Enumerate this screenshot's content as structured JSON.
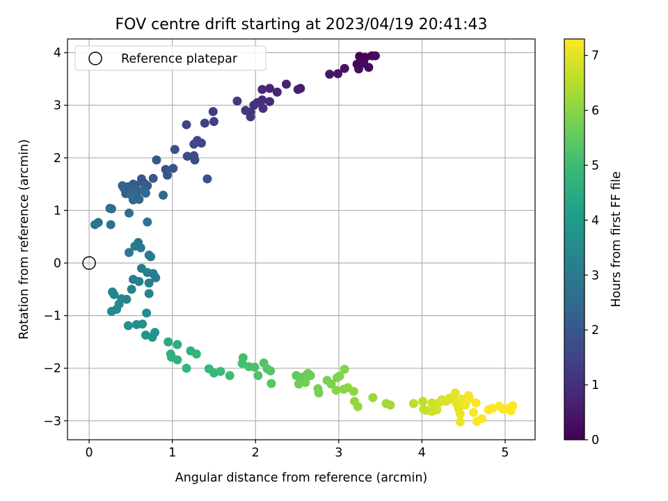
{
  "chart_data": {
    "type": "scatter",
    "title": "FOV centre drift starting at 2023/04/19 20:41:43",
    "xlabel": "Angular distance from reference (arcmin)",
    "ylabel": "Rotation from reference (arcmin)",
    "xlim": [
      -0.26,
      5.36
    ],
    "ylim": [
      -3.36,
      4.26
    ],
    "x_ticks": [
      0,
      1,
      2,
      3,
      4,
      5
    ],
    "y_ticks": [
      -3,
      -2,
      -1,
      0,
      1,
      2,
      3,
      4
    ],
    "grid": true,
    "legend": {
      "placement": "top-left",
      "entries": [
        "Reference platepar"
      ]
    },
    "reference_point": {
      "x": 0,
      "y": 0,
      "label": "Reference platepar"
    },
    "colorbar": {
      "label": "Hours from first FF file",
      "range": [
        0,
        7.3
      ],
      "ticks": [
        0,
        1,
        2,
        3,
        4,
        5,
        6,
        7
      ],
      "colormap": "viridis"
    },
    "colormap_stops": [
      "#440154",
      "#482878",
      "#3e4989",
      "#31688e",
      "#26828e",
      "#1f9e89",
      "#35b779",
      "#6ece58",
      "#b5de2b",
      "#fde725"
    ],
    "points": [
      {
        "x": 3.25,
        "y": 3.93,
        "h": 0.0
      },
      {
        "x": 3.32,
        "y": 3.91,
        "h": 0.04
      },
      {
        "x": 3.4,
        "y": 3.94,
        "h": 0.08
      },
      {
        "x": 3.28,
        "y": 3.86,
        "h": 0.11
      },
      {
        "x": 3.22,
        "y": 3.78,
        "h": 0.15
      },
      {
        "x": 3.3,
        "y": 3.8,
        "h": 0.18
      },
      {
        "x": 3.36,
        "y": 3.72,
        "h": 0.22
      },
      {
        "x": 3.24,
        "y": 3.69,
        "h": 0.26
      },
      {
        "x": 3.44,
        "y": 3.94,
        "h": 0.3
      },
      {
        "x": 3.07,
        "y": 3.7,
        "h": 0.36
      },
      {
        "x": 2.99,
        "y": 3.6,
        "h": 0.42
      },
      {
        "x": 2.89,
        "y": 3.59,
        "h": 0.48
      },
      {
        "x": 2.54,
        "y": 3.32,
        "h": 0.6
      },
      {
        "x": 2.51,
        "y": 3.3,
        "h": 0.65
      },
      {
        "x": 2.37,
        "y": 3.4,
        "h": 0.7
      },
      {
        "x": 2.26,
        "y": 3.25,
        "h": 0.75
      },
      {
        "x": 2.17,
        "y": 3.32,
        "h": 0.8
      },
      {
        "x": 2.08,
        "y": 3.3,
        "h": 0.85
      },
      {
        "x": 2.17,
        "y": 3.07,
        "h": 0.9
      },
      {
        "x": 2.08,
        "y": 3.1,
        "h": 0.95
      },
      {
        "x": 2.02,
        "y": 3.05,
        "h": 1.0
      },
      {
        "x": 1.98,
        "y": 3.0,
        "h": 1.05
      },
      {
        "x": 2.09,
        "y": 2.94,
        "h": 1.08
      },
      {
        "x": 1.94,
        "y": 2.87,
        "h": 1.12
      },
      {
        "x": 1.88,
        "y": 2.9,
        "h": 1.16
      },
      {
        "x": 1.94,
        "y": 2.78,
        "h": 1.2
      },
      {
        "x": 1.78,
        "y": 3.08,
        "h": 1.25
      },
      {
        "x": 1.49,
        "y": 2.88,
        "h": 1.35
      },
      {
        "x": 1.5,
        "y": 2.69,
        "h": 1.4
      },
      {
        "x": 1.39,
        "y": 2.66,
        "h": 1.45
      },
      {
        "x": 1.17,
        "y": 2.63,
        "h": 1.5
      },
      {
        "x": 1.35,
        "y": 2.28,
        "h": 1.55
      },
      {
        "x": 1.3,
        "y": 2.33,
        "h": 1.58
      },
      {
        "x": 1.26,
        "y": 2.26,
        "h": 1.62
      },
      {
        "x": 1.26,
        "y": 2.04,
        "h": 1.66
      },
      {
        "x": 1.27,
        "y": 1.96,
        "h": 1.7
      },
      {
        "x": 1.18,
        "y": 2.03,
        "h": 1.74
      },
      {
        "x": 1.03,
        "y": 2.16,
        "h": 1.78
      },
      {
        "x": 1.42,
        "y": 1.6,
        "h": 1.8
      },
      {
        "x": 1.01,
        "y": 1.8,
        "h": 1.84
      },
      {
        "x": 0.92,
        "y": 1.78,
        "h": 1.88
      },
      {
        "x": 0.94,
        "y": 1.67,
        "h": 1.92
      },
      {
        "x": 0.81,
        "y": 1.96,
        "h": 1.96
      },
      {
        "x": 0.77,
        "y": 1.61,
        "h": 2.0
      },
      {
        "x": 0.63,
        "y": 1.6,
        "h": 2.04
      },
      {
        "x": 0.7,
        "y": 1.47,
        "h": 2.08
      },
      {
        "x": 0.66,
        "y": 1.52,
        "h": 2.1
      },
      {
        "x": 0.56,
        "y": 1.48,
        "h": 2.13
      },
      {
        "x": 0.53,
        "y": 1.5,
        "h": 2.16
      },
      {
        "x": 0.47,
        "y": 1.45,
        "h": 2.19
      },
      {
        "x": 0.42,
        "y": 1.42,
        "h": 2.22
      },
      {
        "x": 0.4,
        "y": 1.47,
        "h": 2.25
      },
      {
        "x": 0.44,
        "y": 1.32,
        "h": 2.28
      },
      {
        "x": 0.52,
        "y": 1.37,
        "h": 2.31
      },
      {
        "x": 0.58,
        "y": 1.36,
        "h": 2.34
      },
      {
        "x": 0.65,
        "y": 1.38,
        "h": 2.37
      },
      {
        "x": 0.58,
        "y": 1.24,
        "h": 2.4
      },
      {
        "x": 0.53,
        "y": 1.2,
        "h": 2.43
      },
      {
        "x": 0.6,
        "y": 1.21,
        "h": 2.46
      },
      {
        "x": 0.68,
        "y": 1.33,
        "h": 2.49
      },
      {
        "x": 0.89,
        "y": 1.29,
        "h": 2.52
      },
      {
        "x": 0.5,
        "y": 1.3,
        "h": 2.55
      },
      {
        "x": 0.25,
        "y": 1.04,
        "h": 2.6
      },
      {
        "x": 0.27,
        "y": 1.03,
        "h": 2.63
      },
      {
        "x": 0.48,
        "y": 0.95,
        "h": 2.66
      },
      {
        "x": 0.11,
        "y": 0.77,
        "h": 2.7
      },
      {
        "x": 0.07,
        "y": 0.73,
        "h": 2.73
      },
      {
        "x": 0.26,
        "y": 0.73,
        "h": 2.76
      },
      {
        "x": 0.7,
        "y": 0.78,
        "h": 2.8
      },
      {
        "x": 0.59,
        "y": 0.39,
        "h": 2.86
      },
      {
        "x": 0.55,
        "y": 0.32,
        "h": 2.9
      },
      {
        "x": 0.62,
        "y": 0.29,
        "h": 2.93
      },
      {
        "x": 0.48,
        "y": 0.2,
        "h": 2.96
      },
      {
        "x": 0.72,
        "y": 0.15,
        "h": 3.0
      },
      {
        "x": 0.74,
        "y": 0.12,
        "h": 3.02
      },
      {
        "x": 0.63,
        "y": -0.1,
        "h": 3.05
      },
      {
        "x": 0.7,
        "y": -0.18,
        "h": 3.08
      },
      {
        "x": 0.77,
        "y": -0.2,
        "h": 3.1
      },
      {
        "x": 0.8,
        "y": -0.28,
        "h": 3.13
      },
      {
        "x": 0.53,
        "y": -0.31,
        "h": 3.16
      },
      {
        "x": 0.6,
        "y": -0.35,
        "h": 3.18
      },
      {
        "x": 0.72,
        "y": -0.38,
        "h": 3.21
      },
      {
        "x": 0.51,
        "y": -0.5,
        "h": 3.24
      },
      {
        "x": 0.72,
        "y": -0.58,
        "h": 3.26
      },
      {
        "x": 0.28,
        "y": -0.55,
        "h": 3.3
      },
      {
        "x": 0.3,
        "y": -0.6,
        "h": 3.33
      },
      {
        "x": 0.45,
        "y": -0.69,
        "h": 3.36
      },
      {
        "x": 0.39,
        "y": -0.68,
        "h": 3.39
      },
      {
        "x": 0.36,
        "y": -0.78,
        "h": 3.42
      },
      {
        "x": 0.33,
        "y": -0.88,
        "h": 3.45
      },
      {
        "x": 0.27,
        "y": -0.92,
        "h": 3.48
      },
      {
        "x": 0.69,
        "y": -0.95,
        "h": 3.55
      },
      {
        "x": 0.57,
        "y": -1.17,
        "h": 3.62
      },
      {
        "x": 0.64,
        "y": -1.16,
        "h": 3.66
      },
      {
        "x": 0.47,
        "y": -1.19,
        "h": 3.7
      },
      {
        "x": 0.79,
        "y": -1.32,
        "h": 3.76
      },
      {
        "x": 0.68,
        "y": -1.37,
        "h": 3.8
      },
      {
        "x": 0.76,
        "y": -1.41,
        "h": 3.84
      },
      {
        "x": 0.95,
        "y": -1.5,
        "h": 4.5
      },
      {
        "x": 1.06,
        "y": -1.55,
        "h": 4.55
      },
      {
        "x": 0.98,
        "y": -1.73,
        "h": 4.6
      },
      {
        "x": 0.99,
        "y": -1.79,
        "h": 4.64
      },
      {
        "x": 1.06,
        "y": -1.84,
        "h": 4.68
      },
      {
        "x": 1.22,
        "y": -1.67,
        "h": 4.72
      },
      {
        "x": 1.29,
        "y": -1.73,
        "h": 4.76
      },
      {
        "x": 1.17,
        "y": -2.0,
        "h": 4.8
      },
      {
        "x": 1.44,
        "y": -2.01,
        "h": 4.86
      },
      {
        "x": 1.5,
        "y": -2.09,
        "h": 4.9
      },
      {
        "x": 1.58,
        "y": -2.06,
        "h": 4.94
      },
      {
        "x": 1.69,
        "y": -2.14,
        "h": 4.98
      },
      {
        "x": 1.85,
        "y": -1.8,
        "h": 5.08
      },
      {
        "x": 1.84,
        "y": -1.91,
        "h": 5.12
      },
      {
        "x": 1.92,
        "y": -1.97,
        "h": 5.16
      },
      {
        "x": 1.99,
        "y": -1.98,
        "h": 5.2
      },
      {
        "x": 2.03,
        "y": -2.14,
        "h": 5.24
      },
      {
        "x": 2.1,
        "y": -1.9,
        "h": 5.28
      },
      {
        "x": 2.14,
        "y": -2.01,
        "h": 5.32
      },
      {
        "x": 2.18,
        "y": -2.05,
        "h": 5.36
      },
      {
        "x": 2.19,
        "y": -2.29,
        "h": 5.4
      },
      {
        "x": 2.49,
        "y": -2.14,
        "h": 5.5
      },
      {
        "x": 2.54,
        "y": -2.2,
        "h": 5.55
      },
      {
        "x": 2.58,
        "y": -2.16,
        "h": 5.58
      },
      {
        "x": 2.63,
        "y": -2.1,
        "h": 5.62
      },
      {
        "x": 2.66,
        "y": -2.14,
        "h": 5.65
      },
      {
        "x": 2.52,
        "y": -2.3,
        "h": 5.68
      },
      {
        "x": 2.6,
        "y": -2.27,
        "h": 5.71
      },
      {
        "x": 2.75,
        "y": -2.39,
        "h": 5.75
      },
      {
        "x": 2.76,
        "y": -2.47,
        "h": 5.78
      },
      {
        "x": 2.86,
        "y": -2.23,
        "h": 5.81
      },
      {
        "x": 2.91,
        "y": -2.3,
        "h": 5.84
      },
      {
        "x": 2.98,
        "y": -2.18,
        "h": 5.87
      },
      {
        "x": 3.01,
        "y": -2.15,
        "h": 5.9
      },
      {
        "x": 3.07,
        "y": -2.02,
        "h": 5.93
      },
      {
        "x": 2.97,
        "y": -2.42,
        "h": 5.96
      },
      {
        "x": 3.06,
        "y": -2.4,
        "h": 5.99
      },
      {
        "x": 3.11,
        "y": -2.37,
        "h": 6.02
      },
      {
        "x": 3.18,
        "y": -2.44,
        "h": 6.05
      },
      {
        "x": 3.19,
        "y": -2.63,
        "h": 6.08
      },
      {
        "x": 3.23,
        "y": -2.73,
        "h": 6.11
      },
      {
        "x": 3.41,
        "y": -2.56,
        "h": 6.2
      },
      {
        "x": 3.57,
        "y": -2.67,
        "h": 6.25
      },
      {
        "x": 3.62,
        "y": -2.7,
        "h": 6.3
      },
      {
        "x": 3.9,
        "y": -2.67,
        "h": 6.55
      },
      {
        "x": 4.01,
        "y": -2.63,
        "h": 6.6
      },
      {
        "x": 4.02,
        "y": -2.78,
        "h": 6.64
      },
      {
        "x": 4.05,
        "y": -2.8,
        "h": 6.68
      },
      {
        "x": 4.12,
        "y": -2.66,
        "h": 6.72
      },
      {
        "x": 4.12,
        "y": -2.82,
        "h": 6.75
      },
      {
        "x": 4.16,
        "y": -2.75,
        "h": 6.78
      },
      {
        "x": 4.18,
        "y": -2.79,
        "h": 6.81
      },
      {
        "x": 4.21,
        "y": -2.65,
        "h": 6.84
      },
      {
        "x": 4.24,
        "y": -2.6,
        "h": 6.87
      },
      {
        "x": 4.29,
        "y": -2.63,
        "h": 6.9
      },
      {
        "x": 4.33,
        "y": -2.57,
        "h": 6.93
      },
      {
        "x": 4.38,
        "y": -2.6,
        "h": 6.96
      },
      {
        "x": 4.4,
        "y": -2.47,
        "h": 6.99
      },
      {
        "x": 4.42,
        "y": -2.68,
        "h": 7.02
      },
      {
        "x": 4.44,
        "y": -2.77,
        "h": 7.05
      },
      {
        "x": 4.46,
        "y": -2.87,
        "h": 7.08
      },
      {
        "x": 4.46,
        "y": -3.02,
        "h": 7.1
      },
      {
        "x": 4.48,
        "y": -2.59,
        "h": 7.12
      },
      {
        "x": 4.52,
        "y": -2.7,
        "h": 7.15
      },
      {
        "x": 4.54,
        "y": -2.62,
        "h": 7.18
      },
      {
        "x": 4.56,
        "y": -2.52,
        "h": 7.2
      },
      {
        "x": 4.57,
        "y": -2.57,
        "h": 7.22
      },
      {
        "x": 4.62,
        "y": -2.84,
        "h": 7.24
      },
      {
        "x": 4.65,
        "y": -2.66,
        "h": 7.26
      },
      {
        "x": 4.66,
        "y": -3.01,
        "h": 7.27
      },
      {
        "x": 4.72,
        "y": -2.96,
        "h": 7.28
      },
      {
        "x": 4.8,
        "y": -2.79,
        "h": 7.29
      },
      {
        "x": 4.85,
        "y": -2.76,
        "h": 7.29
      },
      {
        "x": 4.93,
        "y": -2.72,
        "h": 7.3
      },
      {
        "x": 4.98,
        "y": -2.78,
        "h": 7.3
      },
      {
        "x": 5.03,
        "y": -2.77,
        "h": 7.3
      },
      {
        "x": 5.07,
        "y": -2.81,
        "h": 7.3
      },
      {
        "x": 5.09,
        "y": -2.71,
        "h": 7.3
      }
    ]
  }
}
